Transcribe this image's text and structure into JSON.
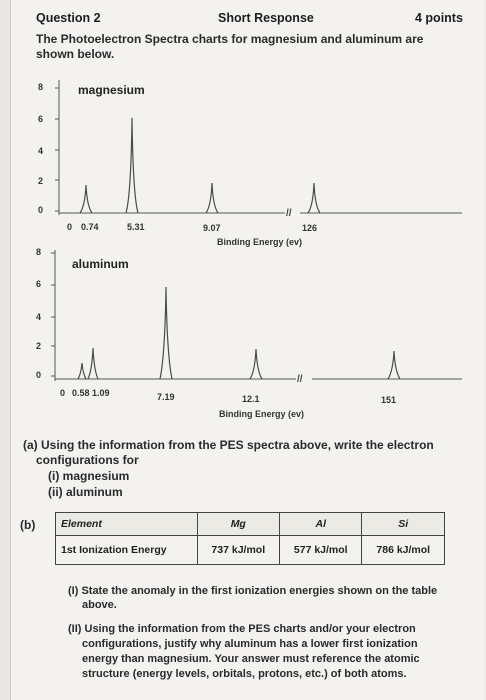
{
  "header": {
    "question": "Question 2",
    "type": "Short Response",
    "points": "4 points"
  },
  "intro": {
    "line1": "The Photoelectron Spectra charts for magnesium and aluminum are",
    "line2": "shown below."
  },
  "chart_data": [
    {
      "type": "line",
      "title": "magnesium",
      "xlabel": "Binding Energy (ev)",
      "x_ticks": [
        "0",
        "0.74",
        "5.31",
        "9.07",
        "126"
      ],
      "y_ticks": [
        "8",
        "6",
        "4",
        "2",
        "0"
      ],
      "ylim": [
        0,
        8
      ],
      "axis_break": "//",
      "peaks": [
        {
          "x": 0.74,
          "height": 2
        },
        {
          "x": 5.31,
          "height": 6
        },
        {
          "x": 9.07,
          "height": 2
        },
        {
          "x": 126,
          "height": 2
        }
      ]
    },
    {
      "type": "line",
      "title": "aluminum",
      "xlabel": "Binding Energy (ev)",
      "x_ticks": [
        "0",
        "0.58",
        "1.09",
        "7.19",
        "12.1",
        "151"
      ],
      "y_ticks": [
        "8",
        "6",
        "4",
        "2",
        "0"
      ],
      "ylim": [
        0,
        8
      ],
      "axis_break": "//",
      "peaks": [
        {
          "x": 0.58,
          "height": 1
        },
        {
          "x": 1.09,
          "height": 2
        },
        {
          "x": 7.19,
          "height": 6
        },
        {
          "x": 12.1,
          "height": 2
        },
        {
          "x": 151,
          "height": 2
        }
      ]
    }
  ],
  "part_a": {
    "line1": "(a) Using the information from the PES spectra above, write the electron",
    "line2": "configurations for",
    "i": "(i) magnesium",
    "ii": "(ii) aluminum"
  },
  "part_b": {
    "label": "(b)",
    "table": {
      "headers": [
        "Element",
        "Mg",
        "Al",
        "Si"
      ],
      "row_label": "1st Ionization Energy",
      "values": [
        "737 kJ/mol",
        "577 kJ/mol",
        "786 kJ/mol"
      ]
    },
    "I": {
      "line1": "(I) State the anomaly in the first ionization energies shown on the table",
      "line2": "above."
    },
    "II": {
      "line1": "(II) Using the information from the PES charts and/or your electron",
      "line2": "configurations, justify why aluminum has a lower first ionization",
      "line3": "energy than magnesium. Your answer must reference the atomic",
      "line4": "structure (energy levels, orbitals, protons, etc.) of both atoms."
    }
  }
}
